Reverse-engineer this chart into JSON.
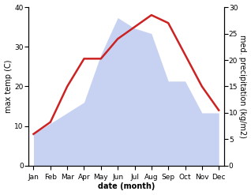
{
  "months": [
    "Jan",
    "Feb",
    "Mar",
    "Apr",
    "May",
    "Jun",
    "Jul",
    "Aug",
    "Sep",
    "Oct",
    "Nov",
    "Dec"
  ],
  "temp": [
    8,
    11,
    20,
    27,
    27,
    32,
    35,
    38,
    36,
    28,
    20,
    14
  ],
  "precip": [
    6,
    8,
    10,
    12,
    21,
    28,
    26,
    25,
    16,
    16,
    10,
    10
  ],
  "temp_color": "#cc2222",
  "precip_color": "#aabbee",
  "precip_fill_alpha": 0.65,
  "left_label": "max temp (C)",
  "right_label": "med. precipitation (kg/m2)",
  "xlabel": "date (month)",
  "ylim_left": [
    0,
    40
  ],
  "ylim_right": [
    0,
    30
  ],
  "yticks_left": [
    0,
    10,
    20,
    30,
    40
  ],
  "yticks_right": [
    0,
    5,
    10,
    15,
    20,
    25,
    30
  ],
  "label_fontsize": 7,
  "tick_fontsize": 6.5,
  "line_width": 1.8,
  "fig_width": 3.18,
  "fig_height": 2.47,
  "dpi": 100
}
